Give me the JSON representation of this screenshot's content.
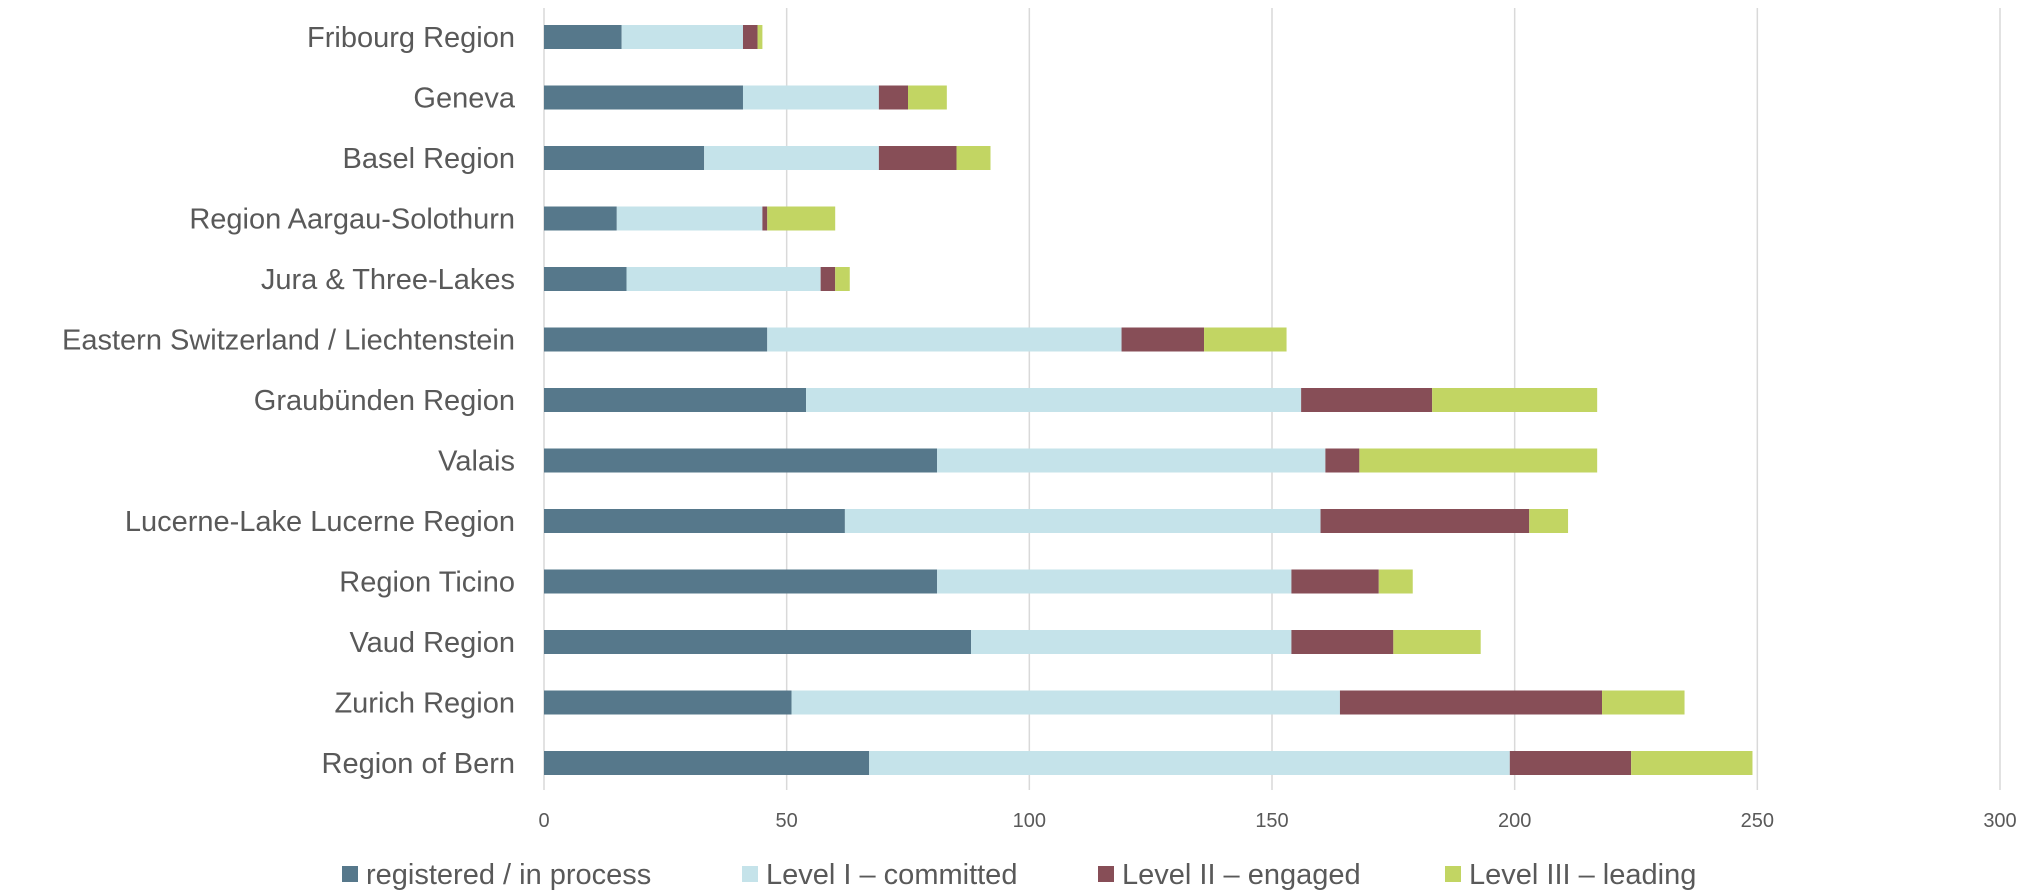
{
  "chart_data": {
    "type": "bar",
    "orientation": "horizontal",
    "stacked": true,
    "categories": [
      "Fribourg Region",
      "Geneva",
      "Basel Region",
      "Region Aargau-Solothurn",
      "Jura & Three-Lakes",
      "Eastern Switzerland / Liechtenstein",
      "Graubünden Region",
      "Valais",
      "Lucerne-Lake Lucerne Region",
      "Region Ticino",
      "Vaud Region",
      "Zurich Region",
      "Region of Bern"
    ],
    "series": [
      {
        "name": "registered / in process",
        "color": "#56788B",
        "values": [
          16,
          41,
          33,
          15,
          17,
          46,
          54,
          81,
          62,
          81,
          88,
          51,
          67
        ]
      },
      {
        "name": "Level I – committed",
        "color": "#C5E3EA",
        "values": [
          25,
          28,
          36,
          30,
          40,
          73,
          102,
          80,
          98,
          73,
          66,
          113,
          132
        ]
      },
      {
        "name": "Level II – engaged",
        "color": "#874E57",
        "values": [
          3,
          6,
          16,
          1,
          3,
          17,
          27,
          7,
          43,
          18,
          21,
          54,
          25
        ]
      },
      {
        "name": "Level III – leading",
        "color": "#C2D563",
        "values": [
          1,
          8,
          7,
          14,
          3,
          17,
          34,
          49,
          8,
          7,
          18,
          17,
          25
        ]
      }
    ],
    "xlim": [
      0,
      300
    ],
    "xticks": [
      0,
      50,
      100,
      150,
      200,
      250,
      300
    ],
    "grid": "vertical",
    "legend": "bottom"
  }
}
